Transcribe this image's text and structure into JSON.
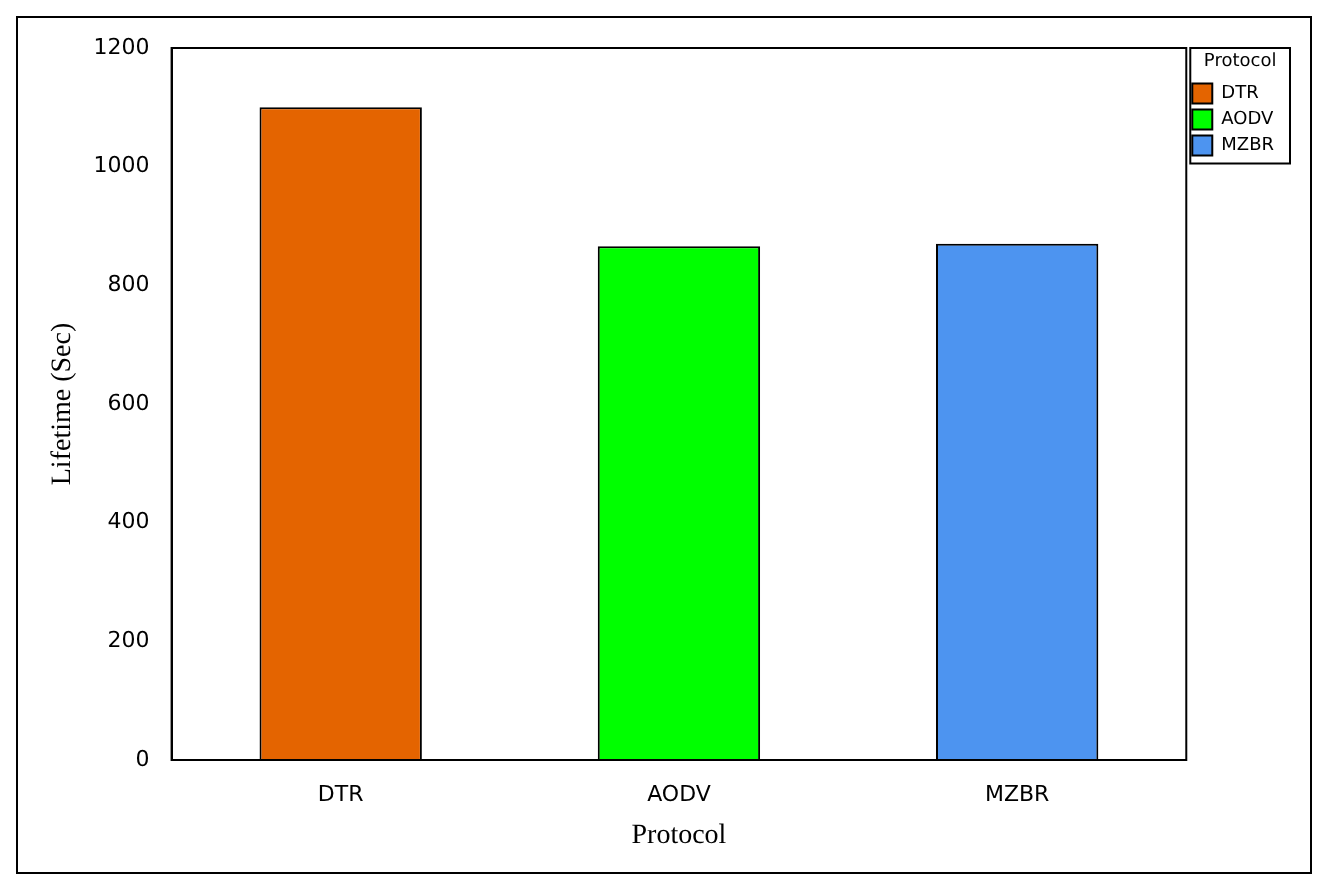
{
  "chart_data": {
    "type": "bar",
    "xlabel": "Protocol",
    "ylabel": "Lifetime (Sec)",
    "legend_title": "Protocol",
    "categories": [
      "DTR",
      "AODV",
      "MZBR"
    ],
    "series": [
      {
        "name": "DTR",
        "color": "#e46400",
        "values": [
          1100,
          null,
          null
        ]
      },
      {
        "name": "AODV",
        "color": "#00ff00",
        "values": [
          null,
          866,
          null
        ]
      },
      {
        "name": "MZBR",
        "color": "#4d94f0",
        "values": [
          null,
          null,
          870
        ]
      }
    ],
    "ylim": [
      0,
      1200
    ],
    "yticks": [
      0,
      200,
      400,
      600,
      800,
      1000,
      1200
    ],
    "grid": false,
    "legend": "top right"
  }
}
